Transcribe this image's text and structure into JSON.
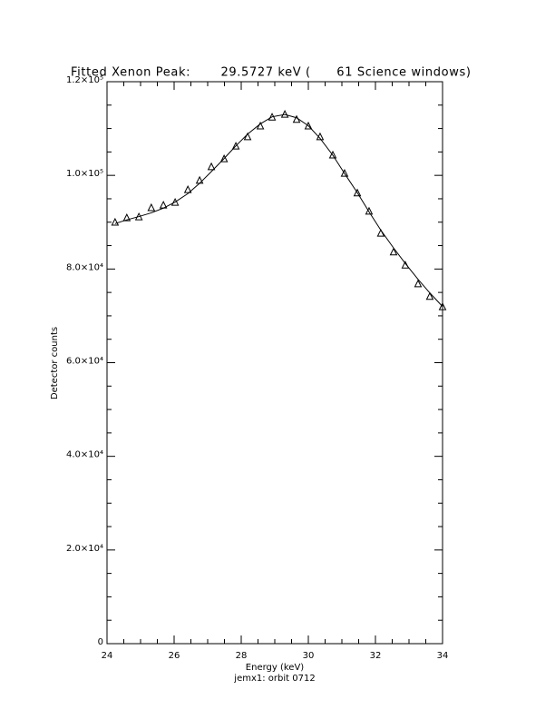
{
  "chart_data": {
    "type": "line",
    "title": "Fitted Xenon Peak:       29.5727 keV (      61 Science windows)",
    "x_label": "Energy (keV)",
    "footer": "jemx1: orbit 0712",
    "y_label": "Detector counts",
    "xlim": [
      24,
      34
    ],
    "xticks": [
      24,
      26,
      28,
      30,
      32,
      34
    ],
    "ylim": [
      0,
      120000
    ],
    "yticks": [
      0,
      {
        "value": 20000,
        "label": "2.0×10⁴"
      },
      {
        "value": 40000,
        "label": "4.0×10⁴"
      },
      {
        "value": 60000,
        "label": "6.0×10⁴"
      },
      {
        "value": 80000,
        "label": "8.0×10⁴"
      },
      {
        "value": 100000,
        "label": "1.0×10⁵"
      },
      {
        "value": 120000,
        "label": "1.2×10⁵"
      }
    ],
    "color": "#000000",
    "series": [
      {
        "style": "triangle",
        "x": [
          24.24,
          24.59,
          24.95,
          25.32,
          25.68,
          26.03,
          26.41,
          26.76,
          27.11,
          27.49,
          27.84,
          28.19,
          28.57,
          28.92,
          29.3,
          29.65,
          30.0,
          30.35,
          30.73,
          31.08,
          31.46,
          31.81,
          32.16,
          32.54,
          32.89,
          33.27,
          33.62,
          34.0
        ],
        "values": [
          89950,
          90900,
          91100,
          93050,
          93600,
          94200,
          96900,
          98900,
          101800,
          103500,
          106200,
          108200,
          110500,
          112400,
          113000,
          111900,
          110500,
          108200,
          104300,
          100400,
          96200,
          92300,
          87600,
          83600,
          80800,
          76800,
          74100,
          71900
        ]
      },
      {
        "style": "line",
        "x": [
          24.24,
          24.59,
          24.95,
          25.32,
          25.68,
          26.03,
          26.41,
          26.76,
          27.11,
          27.49,
          27.84,
          28.19,
          28.57,
          28.92,
          29.3,
          29.65,
          30.0,
          30.35,
          30.73,
          31.08,
          31.46,
          31.81,
          32.16,
          32.54,
          32.89,
          33.27,
          33.62,
          34.0
        ],
        "values": [
          89700,
          90500,
          91200,
          92000,
          93000,
          94300,
          96100,
          98300,
          100800,
          103600,
          106300,
          108800,
          111000,
          112500,
          113000,
          112300,
          110600,
          107900,
          104300,
          100400,
          96300,
          92200,
          88300,
          84500,
          81200,
          77800,
          74900,
          72000
        ]
      }
    ]
  }
}
